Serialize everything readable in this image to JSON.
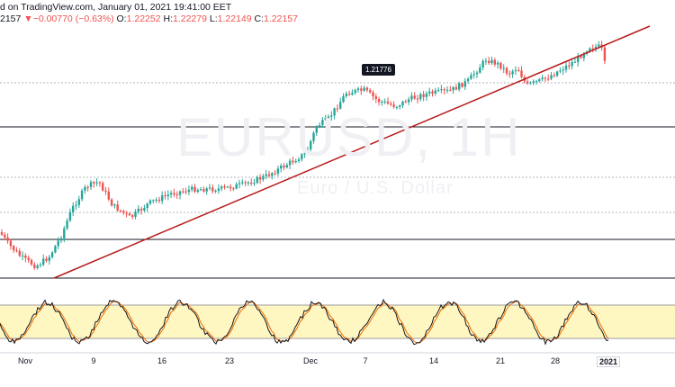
{
  "header": {
    "title_line": "d on TradingView.com, January 01, 2021 19:41:00 EET",
    "price_prefix": "2157",
    "change_arrow": "▼",
    "change_value": "−0.00770 (−0.63%)",
    "open_label": "O:",
    "open_value": "1.22252",
    "high_label": "H:",
    "high_value": "1.22279",
    "low_label": "L:",
    "low_value": "1.22149",
    "close_label": "C:",
    "close_value": "1.22157"
  },
  "watermark": {
    "symbol": "EURUSD, 1H",
    "description": "Euro / U.S. Dollar"
  },
  "price_tag": "1.21776",
  "x_ticks": [
    "Nov",
    "9",
    "16",
    "23",
    "Dec",
    "7",
    "14",
    "21",
    "28",
    "2021"
  ],
  "colors": {
    "up": "#26a69a",
    "down": "#ef5350",
    "trendline": "#b71c1c",
    "hline": "#131722",
    "dotted": "#b2b5be",
    "osc_band": "#fff7c2",
    "stoch_k": "#131722",
    "stoch_d": "#ef6c00"
  },
  "chart_data": {
    "type": "candlestick",
    "symbol": "EURUSD",
    "x_ticks": [
      "Nov",
      "9",
      "16",
      "23",
      "Dec",
      "7",
      "14",
      "21",
      "28",
      "2021"
    ],
    "annotation": "1.21776",
    "last_close": 1.22157
  }
}
